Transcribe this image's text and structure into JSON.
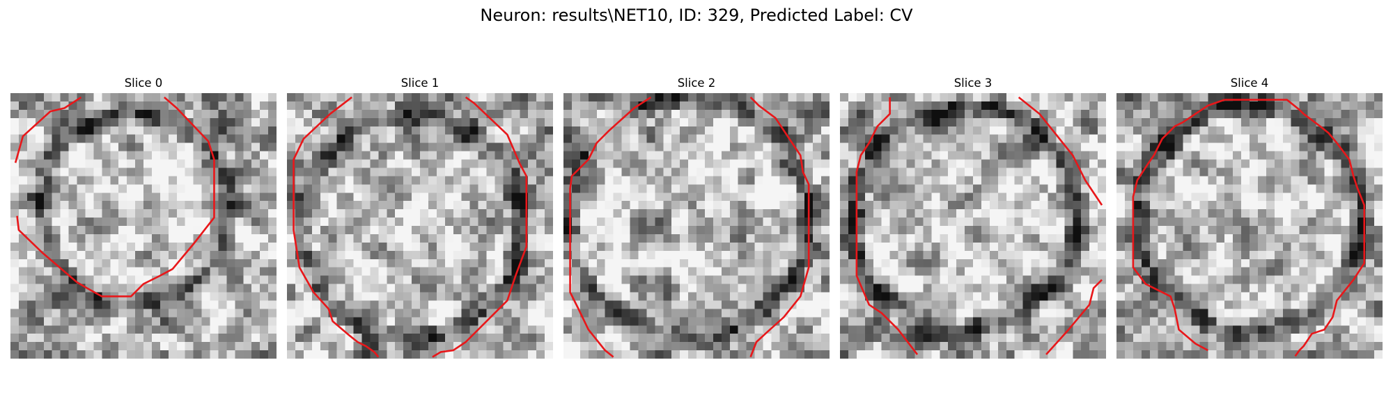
{
  "figure": {
    "title": "Neuron: results\\NET10, ID: 329, Predicted Label: CV"
  },
  "colors": {
    "contour": "#e8171a",
    "background": "#ffffff"
  },
  "slices": [
    {
      "title": "Slice 0"
    },
    {
      "title": "Slice 1"
    },
    {
      "title": "Slice 2"
    },
    {
      "title": "Slice 3"
    },
    {
      "title": "Slice 4"
    }
  ]
}
